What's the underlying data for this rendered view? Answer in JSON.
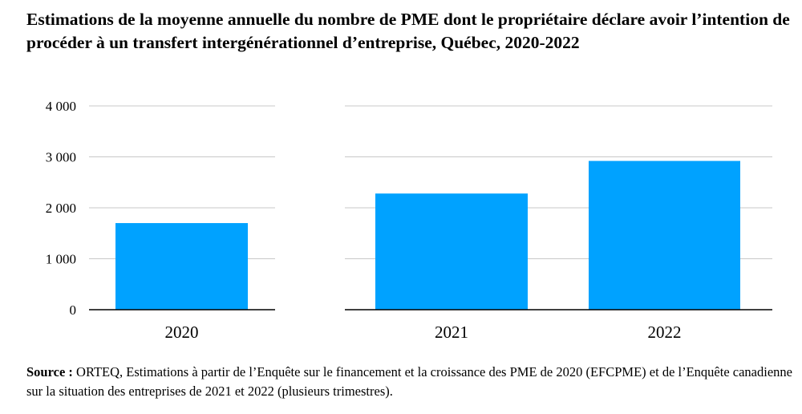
{
  "title": "Estimations de la moyenne annuelle du nombre de PME dont le propriétaire déclare avoir l’intention de procéder à un transfert intergénérationnel d’entreprise, Québec, 2020-2022",
  "source": {
    "label": "Source :",
    "text": "ORTEQ, Estimations à partir de l’Enquête sur le financement et la croissance des PME de 2020 (EFCPME) et de l’Enquête canadienne sur la situation des entreprises de 2021 et 2022 (plusieurs trimestres)."
  },
  "chart_data": [
    {
      "type": "bar",
      "categories": [
        "2020"
      ],
      "values": [
        1700
      ],
      "ylim": [
        0,
        4000
      ],
      "yticks": [
        0,
        1000,
        2000,
        3000,
        4000
      ],
      "ytick_labels": [
        "0",
        "1 000",
        "2 000",
        "3 000",
        "4 000"
      ],
      "grid": true,
      "bar_color": "#00A2FF"
    },
    {
      "type": "bar",
      "categories": [
        "2021",
        "2022"
      ],
      "values": [
        2280,
        2920
      ],
      "ylim": [
        0,
        4000
      ],
      "grid": true,
      "bar_color": "#00A2FF"
    }
  ],
  "colors": {
    "bar": "#00A2FF",
    "grid": "#C8C8C8",
    "axis": "#000000"
  }
}
